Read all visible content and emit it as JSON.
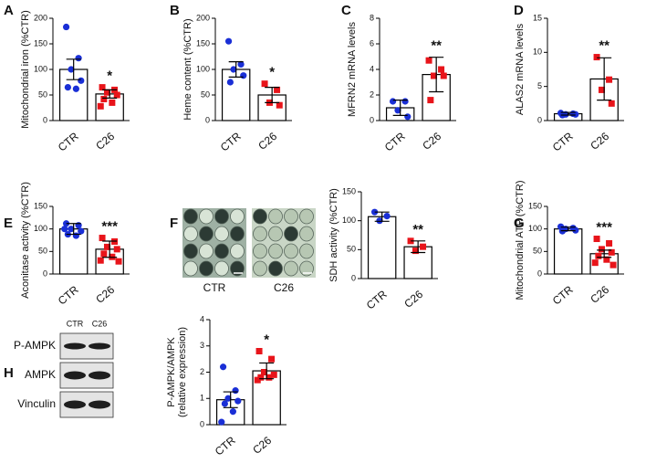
{
  "chart_data": [
    {
      "panel": "A",
      "type": "bar",
      "ylabel": "Mitochondrial iron (%CTR)",
      "categories": [
        "CTR",
        "C26"
      ],
      "values": [
        100,
        52
      ],
      "errors": [
        20,
        8
      ],
      "points": [
        [
          183,
          122,
          100,
          78,
          65,
          62
        ],
        [
          65,
          60,
          55,
          50,
          42,
          35,
          28
        ]
      ],
      "colors": [
        "#1a2fd6",
        "#e8141a"
      ],
      "markers": [
        "circle",
        "square"
      ],
      "ylim": [
        0,
        200
      ],
      "yticks": [
        0,
        50,
        100,
        150,
        200
      ],
      "significance": "*"
    },
    {
      "panel": "B",
      "type": "bar",
      "ylabel": "Heme content (%CTR)",
      "categories": [
        "CTR",
        "C26"
      ],
      "values": [
        100,
        50
      ],
      "errors": [
        15,
        15
      ],
      "points": [
        [
          155,
          110,
          100,
          88,
          75
        ],
        [
          72,
          60,
          35,
          30
        ]
      ],
      "colors": [
        "#1a2fd6",
        "#e8141a"
      ],
      "markers": [
        "circle",
        "square"
      ],
      "ylim": [
        0,
        200
      ],
      "yticks": [
        0,
        50,
        100,
        150,
        200
      ],
      "significance": "*"
    },
    {
      "panel": "C",
      "type": "bar",
      "ylabel": "MFRN2 mRNA levels",
      "categories": [
        "CTR",
        "C26"
      ],
      "values": [
        1.0,
        3.6
      ],
      "errors": [
        0.6,
        1.35
      ],
      "points": [
        [
          1.5,
          1.5,
          0.8,
          0.3
        ],
        [
          4.7,
          4.0,
          3.5,
          3.5,
          1.6
        ]
      ],
      "colors": [
        "#1a2fd6",
        "#e8141a"
      ],
      "markers": [
        "circle",
        "square"
      ],
      "ylim": [
        0,
        8
      ],
      "yticks": [
        0,
        2,
        4,
        6,
        8
      ],
      "significance": "**"
    },
    {
      "panel": "D",
      "type": "bar",
      "ylabel": "ALAS2 mRNA levels",
      "categories": [
        "CTR",
        "C26"
      ],
      "values": [
        1.0,
        6.1
      ],
      "errors": [
        0.2,
        3.1
      ],
      "points": [
        [
          1.1,
          1.0,
          0.9,
          0.9,
          0.8
        ],
        [
          9.3,
          6.0,
          4.5,
          2.5
        ]
      ],
      "colors": [
        "#1a2fd6",
        "#e8141a"
      ],
      "markers": [
        "circle",
        "square"
      ],
      "ylim": [
        0,
        15
      ],
      "yticks": [
        0,
        5,
        10,
        15
      ],
      "significance": "**"
    },
    {
      "panel": "E",
      "type": "bar",
      "ylabel": "Aconitase activity (%CTR)",
      "categories": [
        "CTR",
        "C26"
      ],
      "values": [
        100,
        55
      ],
      "errors": [
        12,
        18
      ],
      "points": [
        [
          112,
          108,
          100,
          95,
          88,
          85,
          100
        ],
        [
          80,
          72,
          60,
          55,
          45,
          38,
          30,
          28
        ]
      ],
      "colors": [
        "#1a2fd6",
        "#e8141a"
      ],
      "markers": [
        "circle",
        "square"
      ],
      "ylim": [
        0,
        150
      ],
      "yticks": [
        0,
        50,
        100,
        150
      ],
      "significance": "***"
    },
    {
      "panel": "F",
      "type": "bar",
      "ylabel": "SDH activity (%CTR)",
      "categories": [
        "CTR",
        "C26"
      ],
      "values": [
        107,
        55
      ],
      "errors": [
        8,
        10
      ],
      "points": [
        [
          115,
          108,
          100
        ],
        [
          65,
          55,
          48
        ]
      ],
      "colors": [
        "#1a2fd6",
        "#e8141a"
      ],
      "markers": [
        "circle",
        "square"
      ],
      "ylim": [
        0,
        150
      ],
      "yticks": [
        0,
        50,
        100,
        150
      ],
      "significance": "**",
      "image_labels": [
        "CTR",
        "C26"
      ]
    },
    {
      "panel": "G",
      "type": "bar",
      "ylabel": "Mitochondrial ATP (%CTR)",
      "categories": [
        "CTR",
        "C26"
      ],
      "values": [
        100,
        45
      ],
      "errors": [
        4,
        8
      ],
      "points": [
        [
          105,
          102,
          100,
          97,
          95
        ],
        [
          78,
          68,
          55,
          48,
          40,
          32,
          25,
          20
        ]
      ],
      "colors": [
        "#1a2fd6",
        "#e8141a"
      ],
      "markers": [
        "circle",
        "square"
      ],
      "ylim": [
        0,
        150
      ],
      "yticks": [
        0,
        50,
        100,
        150
      ],
      "significance": "***"
    },
    {
      "panel": "H",
      "type": "bar",
      "ylabel": [
        "P-AMPK/AMPK",
        "(relative expression)"
      ],
      "categories": [
        "CTR",
        "C26"
      ],
      "values": [
        0.95,
        2.05
      ],
      "errors": [
        0.3,
        0.3
      ],
      "points": [
        [
          2.2,
          1.3,
          1.0,
          0.9,
          0.8,
          0.5,
          0.1
        ],
        [
          2.8,
          2.5,
          2.0,
          1.9,
          1.8,
          1.8,
          1.7
        ]
      ],
      "colors": [
        "#1a2fd6",
        "#e8141a"
      ],
      "markers": [
        "circle",
        "square"
      ],
      "ylim": [
        0,
        4
      ],
      "yticks": [
        0,
        1,
        2,
        3,
        4
      ],
      "significance": "*",
      "blot": {
        "lanes": [
          "CTR",
          "C26"
        ],
        "rows": [
          "P-AMPK",
          "AMPK",
          "Vinculin"
        ]
      }
    }
  ]
}
